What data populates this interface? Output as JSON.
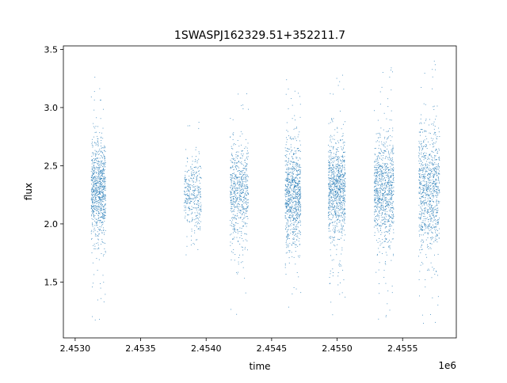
{
  "chart_data": {
    "type": "scatter",
    "title": "1SWASPJ162329.51+352211.7",
    "xlabel": "time",
    "ylabel": "flux",
    "x_offset_label": "1e6",
    "xlim": [
      2.45291,
      2.45591
    ],
    "ylim": [
      1.02,
      3.53
    ],
    "x_ticks": [
      2.453,
      2.4535,
      2.454,
      2.4545,
      2.455,
      2.4555
    ],
    "x_tick_labels": [
      "2.4530",
      "2.4535",
      "2.4540",
      "2.4545",
      "2.4550",
      "2.4555"
    ],
    "y_ticks": [
      1.5,
      2.0,
      2.5,
      3.0,
      3.5
    ],
    "y_tick_labels": [
      "1.5",
      "2.0",
      "2.5",
      "3.0",
      "3.5"
    ],
    "grid": false,
    "legend": "none",
    "point_color": "#1f77b4",
    "series": [
      {
        "clusters": [
          {
            "x_range": [
              2.45312,
              2.45323
            ],
            "center": 2.3,
            "spread": 0.22,
            "core_range": [
              1.9,
              2.6
            ],
            "full_range": [
              1.15,
              3.28
            ],
            "density": 0.95
          },
          {
            "x_range": [
              2.45383,
              2.45388
            ],
            "center": 2.27,
            "spread": 0.12,
            "core_range": [
              2.1,
              2.4
            ],
            "full_range": [
              1.18,
              2.98
            ],
            "density": 0.15
          },
          {
            "x_range": [
              2.45388,
              2.45396
            ],
            "center": 2.25,
            "spread": 0.18,
            "core_range": [
              2.0,
              2.5
            ],
            "full_range": [
              1.7,
              2.88
            ],
            "density": 0.25
          },
          {
            "x_range": [
              2.45418,
              2.45432
            ],
            "center": 2.27,
            "spread": 0.2,
            "core_range": [
              2.0,
              2.55
            ],
            "full_range": [
              1.15,
              3.23
            ],
            "density": 0.7
          },
          {
            "x_range": [
              2.4546,
              2.45472
            ],
            "center": 2.25,
            "spread": 0.24,
            "core_range": [
              1.9,
              2.6
            ],
            "full_range": [
              1.2,
              3.3
            ],
            "density": 0.95
          },
          {
            "x_range": [
              2.45493,
              2.45506
            ],
            "center": 2.3,
            "spread": 0.2,
            "core_range": [
              1.95,
              2.6
            ],
            "full_range": [
              1.2,
              3.4
            ],
            "density": 1.0
          },
          {
            "x_range": [
              2.45528,
              2.45543
            ],
            "center": 2.3,
            "spread": 0.22,
            "core_range": [
              1.95,
              2.6
            ],
            "full_range": [
              1.15,
              3.4
            ],
            "density": 1.0
          },
          {
            "x_range": [
              2.45562,
              2.45578
            ],
            "center": 2.3,
            "spread": 0.26,
            "core_range": [
              1.9,
              2.7
            ],
            "full_range": [
              1.12,
              3.42
            ],
            "density": 1.0
          }
        ]
      }
    ]
  }
}
